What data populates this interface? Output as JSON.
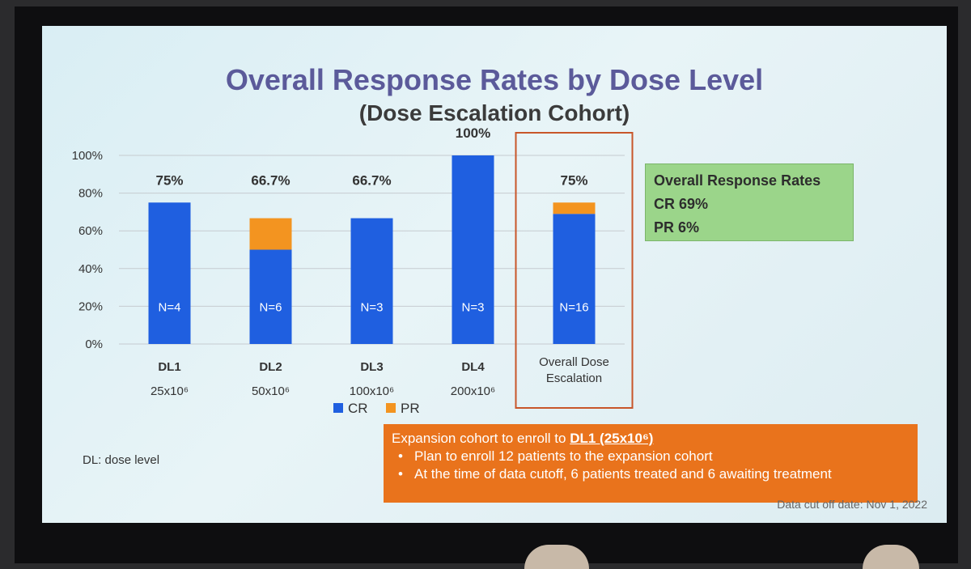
{
  "slide": {
    "title": "Overall Response Rates by Dose Level",
    "subtitle": "(Dose Escalation Cohort)",
    "dl_note": "DL: dose level",
    "cutoff": "Data cut off date: Nov 1, 2022"
  },
  "orr_box": {
    "heading": "Overall Response Rates",
    "cr": "CR 69%",
    "pr": "PR 6%"
  },
  "expansion": {
    "prefix": "Expansion cohort to enroll to ",
    "target": "DL1 (25x10⁶)",
    "bullets": [
      "Plan to enroll 12 patients to the expansion cohort",
      "At the time of data cutoff, 6 patients treated and 6 awaiting treatment"
    ]
  },
  "chart_data": {
    "type": "bar",
    "stacked": true,
    "categories": [
      "DL1",
      "DL2",
      "DL3",
      "DL4",
      "Overall Dose Escalation"
    ],
    "category_sublabels": [
      "25x10⁶",
      "50x10⁶",
      "100x10⁶",
      "200x10⁶",
      ""
    ],
    "series": [
      {
        "name": "CR",
        "color": "#1f5fe0",
        "values": [
          75,
          50,
          66.7,
          100,
          69
        ]
      },
      {
        "name": "PR",
        "color": "#f39420",
        "values": [
          0,
          16.7,
          0,
          0,
          6
        ]
      }
    ],
    "top_labels": [
      "75%",
      "66.7%",
      "66.7%",
      "100%",
      "75%"
    ],
    "n_labels": [
      "N=4",
      "N=6",
      "N=3",
      "N=3",
      "N=16"
    ],
    "y_ticks": [
      "0%",
      "20%",
      "40%",
      "60%",
      "80%",
      "100%"
    ],
    "ylim": [
      0,
      100
    ],
    "grid": true,
    "legend": "bottom-center",
    "highlight_category": "Overall Dose Escalation",
    "highlight_color": "#c8562a"
  }
}
